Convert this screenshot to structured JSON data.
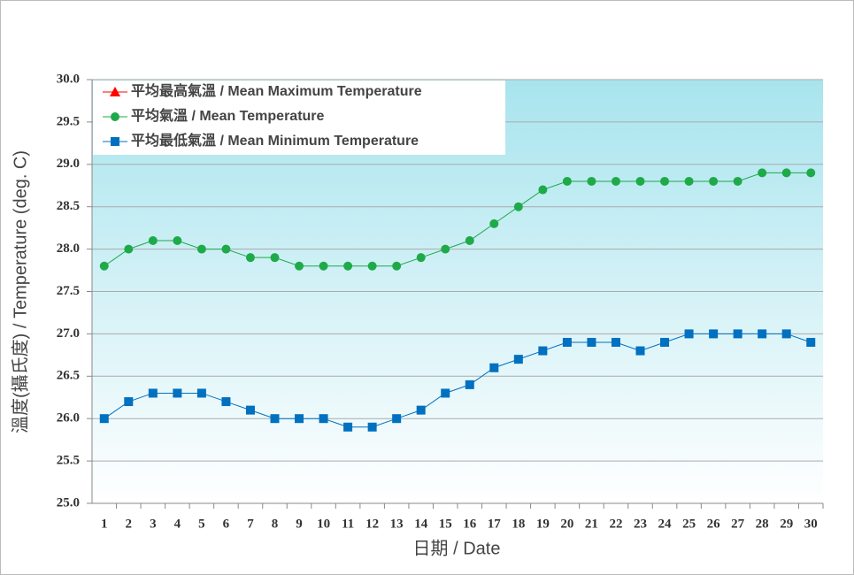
{
  "chart_data": {
    "type": "line",
    "x_label": "日期 / Date",
    "y_label": "溫度(攝氏度) / Temperature (deg. C)",
    "categories": [
      "1",
      "2",
      "3",
      "4",
      "5",
      "6",
      "7",
      "8",
      "9",
      "10",
      "11",
      "12",
      "13",
      "14",
      "15",
      "16",
      "17",
      "18",
      "19",
      "20",
      "21",
      "22",
      "23",
      "24",
      "25",
      "26",
      "27",
      "28",
      "29",
      "30"
    ],
    "series": [
      {
        "name": "平均最高氣溫 / Mean Maximum Temperature",
        "color": "#ff0000",
        "marker": "triangle",
        "values": [
          null,
          null,
          null,
          null,
          null,
          null,
          null,
          null,
          null,
          null,
          null,
          null,
          null,
          null,
          null,
          null,
          null,
          null,
          null,
          null,
          null,
          null,
          null,
          null,
          null,
          null,
          null,
          null,
          null,
          null
        ]
      },
      {
        "name": "平均氣溫 / Mean Temperature",
        "color": "#1faa4a",
        "marker": "circle",
        "values": [
          27.8,
          28.0,
          28.1,
          28.1,
          28.0,
          28.0,
          27.9,
          27.9,
          27.8,
          27.8,
          27.8,
          27.8,
          27.8,
          27.9,
          28.0,
          28.1,
          28.3,
          28.5,
          28.7,
          28.8,
          28.8,
          28.8,
          28.8,
          28.8,
          28.8,
          28.8,
          28.8,
          28.9,
          28.9,
          28.9
        ]
      },
      {
        "name": "平均最低氣溫 / Mean Minimum Temperature",
        "color": "#0070c0",
        "marker": "square",
        "values": [
          26.0,
          26.2,
          26.3,
          26.3,
          26.3,
          26.2,
          26.1,
          26.0,
          26.0,
          26.0,
          25.9,
          25.9,
          26.0,
          26.1,
          26.3,
          26.4,
          26.6,
          26.7,
          26.8,
          26.9,
          26.9,
          26.9,
          26.8,
          26.9,
          27.0,
          27.0,
          27.0,
          27.0,
          27.0,
          26.9
        ]
      }
    ],
    "ylim": [
      25,
      30
    ],
    "yticks": [
      {
        "value": 25,
        "label": "25.0"
      },
      25.5,
      {
        "value": 26,
        "label": "26.0"
      },
      26.5,
      {
        "value": 27,
        "label": "27.0"
      },
      27.5,
      {
        "value": 28,
        "label": "28.0"
      },
      28.5,
      {
        "value": 29,
        "label": "29.0"
      },
      29.5,
      {
        "value": 30,
        "label": "30.0"
      }
    ],
    "grid": true,
    "legend": "top-left"
  }
}
